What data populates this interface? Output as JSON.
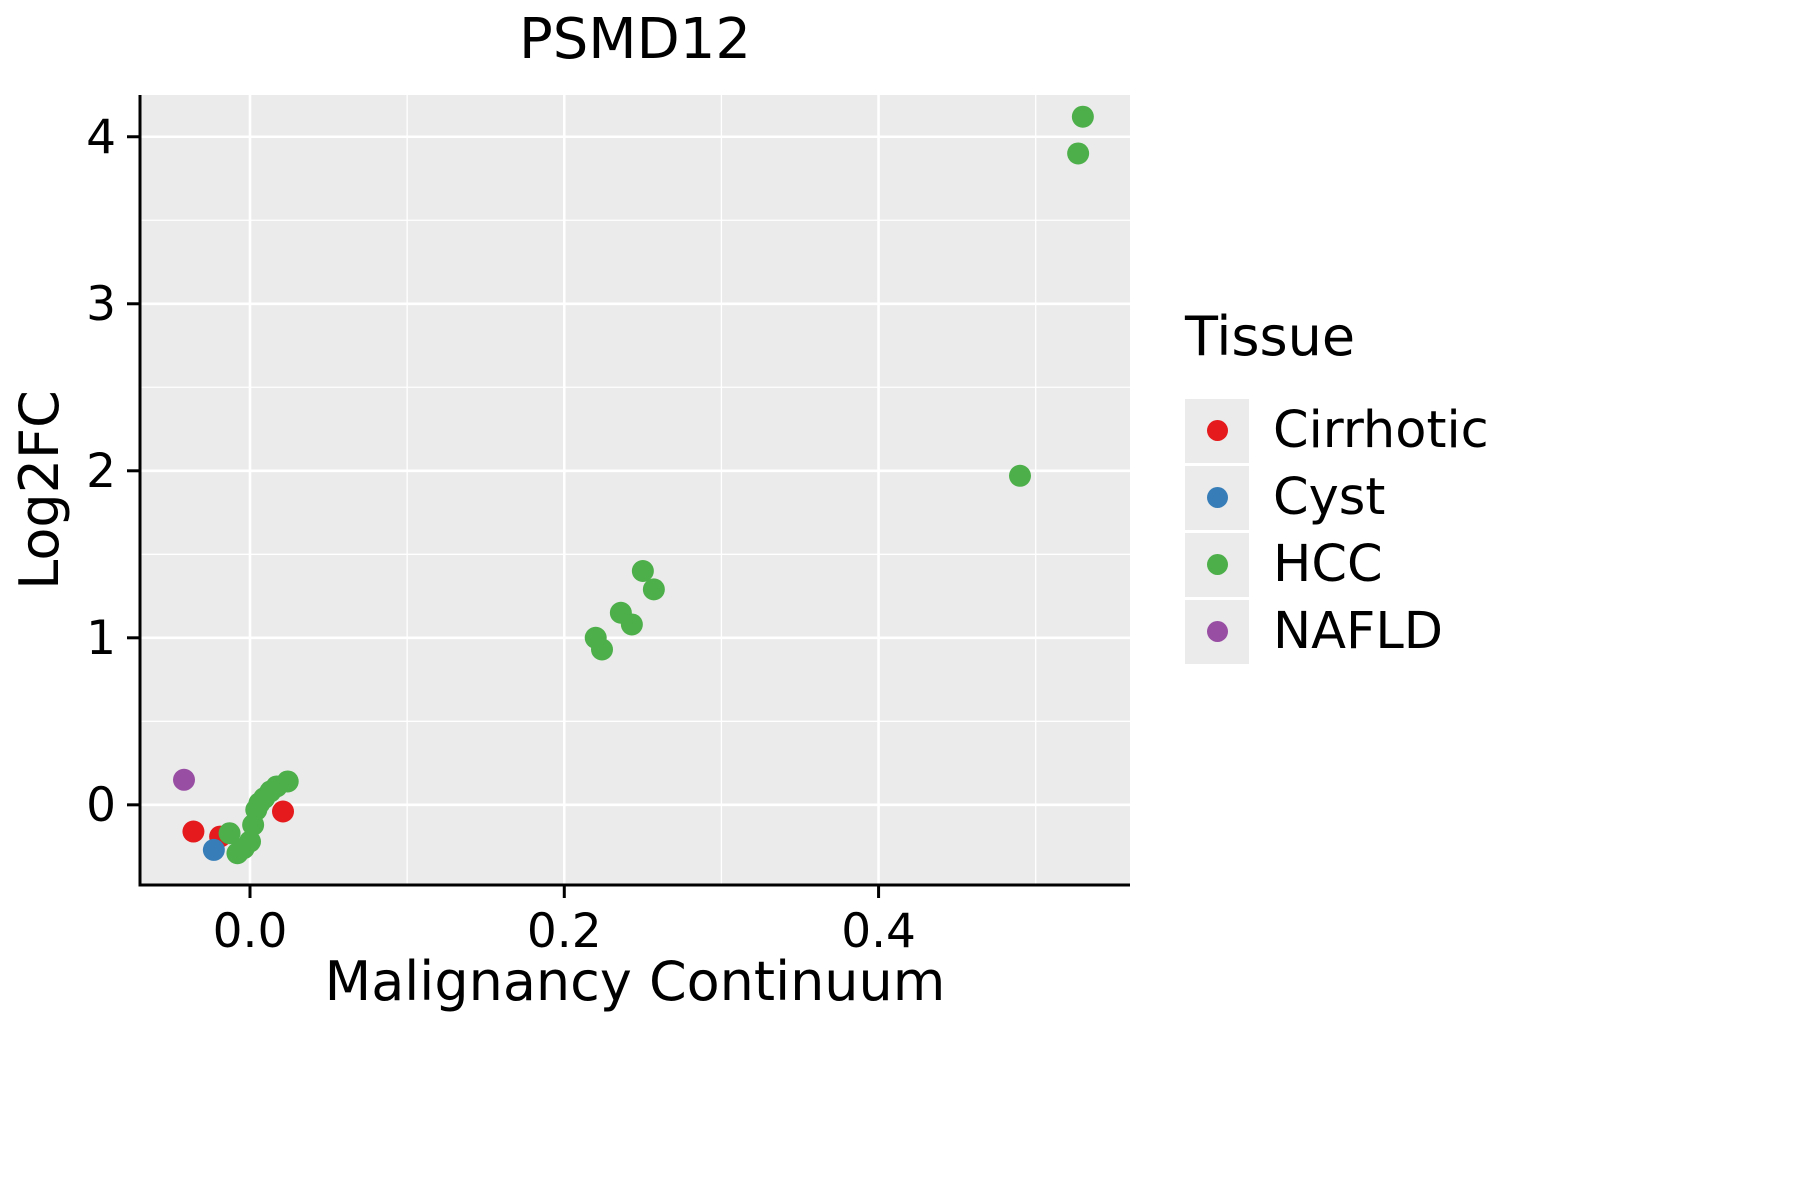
{
  "figure": {
    "title": "PSMD12",
    "xlabel": "Malignancy Continuum",
    "ylabel": "Log2FC"
  },
  "legend": {
    "title": "Tissue",
    "items": [
      {
        "label": "Cirrhotic",
        "color": "#E41A1C"
      },
      {
        "label": "Cyst",
        "color": "#377EB8"
      },
      {
        "label": "HCC",
        "color": "#4DAF4A"
      },
      {
        "label": "NAFLD",
        "color": "#984EA3"
      }
    ]
  },
  "chart_data": {
    "type": "scatter",
    "title": "PSMD12",
    "xlabel": "Malignancy Continuum",
    "ylabel": "Log2FC",
    "xlim": [
      -0.07,
      0.56
    ],
    "ylim": [
      -0.48,
      4.25
    ],
    "x_ticks": [
      0.0,
      0.2,
      0.4
    ],
    "x_tick_labels": [
      "0.0",
      "0.2",
      "0.4"
    ],
    "y_ticks": [
      0,
      1,
      2,
      3,
      4
    ],
    "y_tick_labels": [
      "0",
      "1",
      "2",
      "3",
      "4"
    ],
    "grid": true,
    "panel_background": "#EBEBEB",
    "gridline_color": "#FFFFFF",
    "legend_title": "Tissue",
    "legend_position": "right",
    "series": [
      {
        "name": "Cirrhotic",
        "color": "#E41A1C",
        "points": [
          [
            -0.036,
            -0.16
          ],
          [
            -0.019,
            -0.19
          ],
          [
            0.021,
            -0.04
          ]
        ]
      },
      {
        "name": "Cyst",
        "color": "#377EB8",
        "points": [
          [
            -0.023,
            -0.27
          ]
        ]
      },
      {
        "name": "HCC",
        "color": "#4DAF4A",
        "points": [
          [
            -0.013,
            -0.17
          ],
          [
            -0.008,
            -0.29
          ],
          [
            -0.004,
            -0.26
          ],
          [
            0.0,
            -0.22
          ],
          [
            0.002,
            -0.12
          ],
          [
            0.004,
            -0.03
          ],
          [
            0.006,
            0.01
          ],
          [
            0.009,
            0.04
          ],
          [
            0.013,
            0.08
          ],
          [
            0.017,
            0.11
          ],
          [
            0.024,
            0.14
          ],
          [
            0.22,
            1.0
          ],
          [
            0.224,
            0.93
          ],
          [
            0.236,
            1.15
          ],
          [
            0.243,
            1.08
          ],
          [
            0.25,
            1.4
          ],
          [
            0.257,
            1.29
          ],
          [
            0.49,
            1.97
          ],
          [
            0.527,
            3.9
          ],
          [
            0.53,
            4.12
          ]
        ]
      },
      {
        "name": "NAFLD",
        "color": "#984EA3",
        "points": [
          [
            -0.042,
            0.15
          ]
        ]
      }
    ]
  }
}
